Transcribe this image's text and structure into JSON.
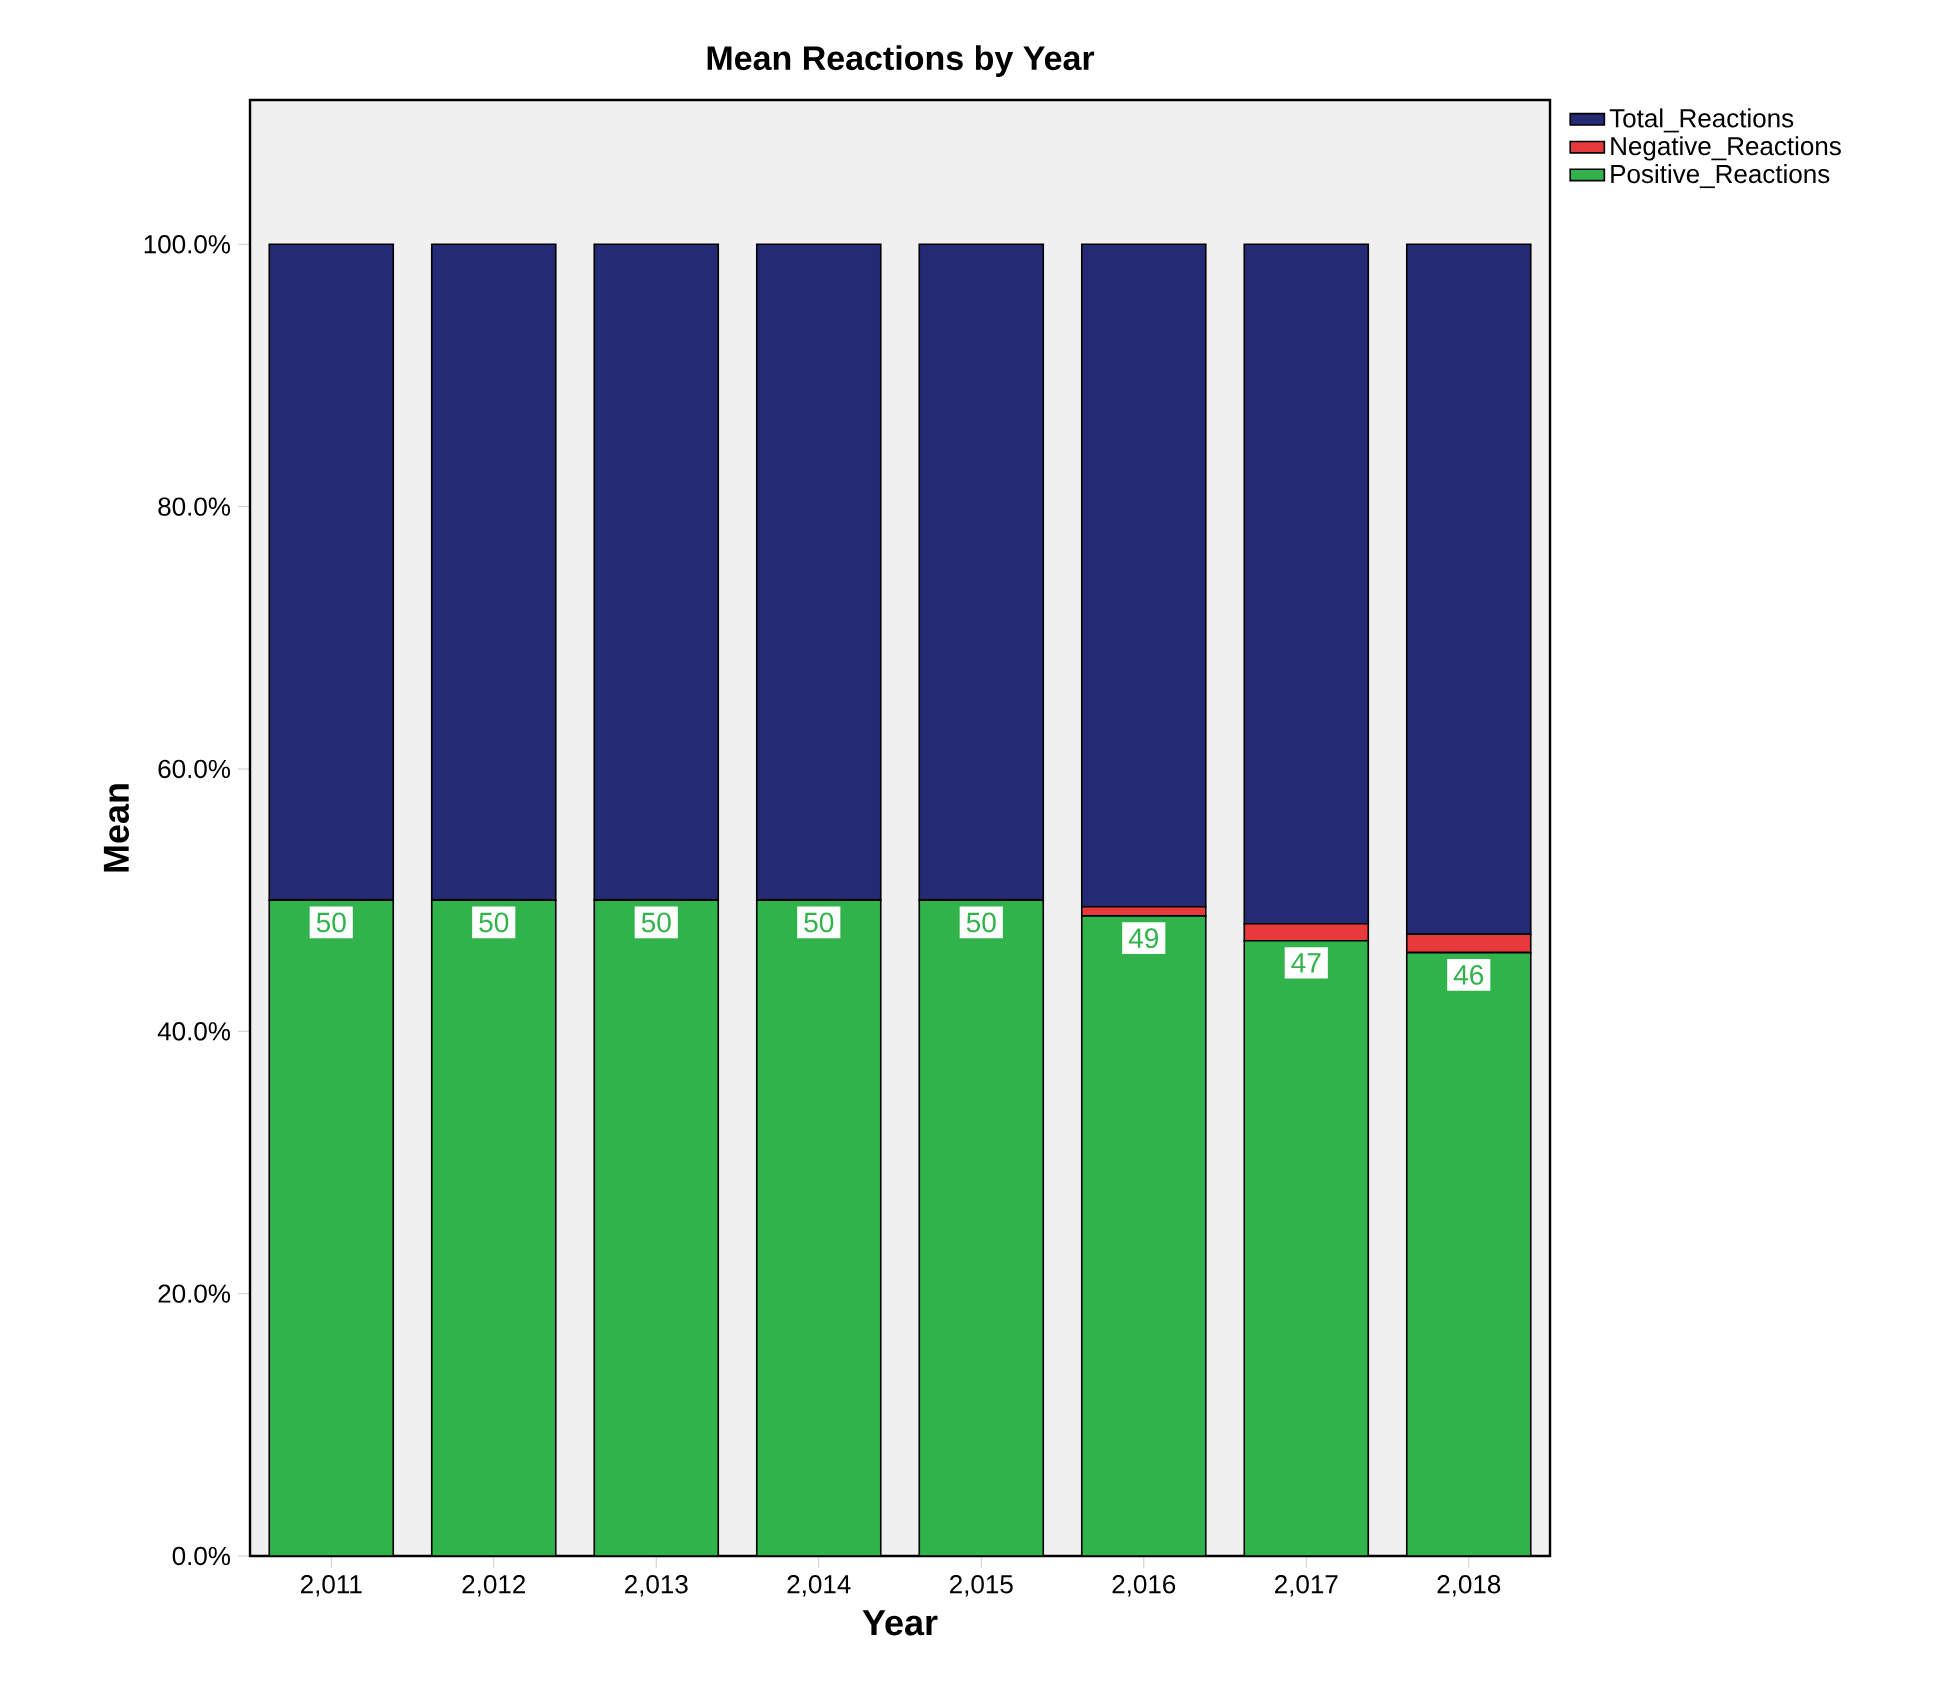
{
  "chart_data": {
    "type": "bar",
    "stacked": true,
    "title": "Mean Reactions by Year",
    "xlabel": "Year",
    "ylabel": "Mean",
    "categories": [
      "2,011",
      "2,012",
      "2,013",
      "2,014",
      "2,015",
      "2,016",
      "2,017",
      "2,018"
    ],
    "series": [
      {
        "name": "Positive_Reactions",
        "color": "#30b34a",
        "values": [
          50,
          50,
          50,
          50,
          50,
          48.8,
          46.9,
          46.0
        ],
        "value_labels": [
          "50",
          "50",
          "50",
          "50",
          "50",
          "49",
          "47",
          "46"
        ]
      },
      {
        "name": "Negative_Reactions",
        "color": "#e83a3a",
        "values": [
          0,
          0,
          0,
          0,
          0,
          0.7,
          1.3,
          1.4
        ]
      },
      {
        "name": "Total_Reactions",
        "color": "#252a75",
        "values": [
          50,
          50,
          50,
          50,
          50,
          50.5,
          51.8,
          52.6
        ]
      }
    ],
    "ylim": [
      0,
      111
    ],
    "yticks": [
      {
        "value": 0,
        "label": "0.0%"
      },
      {
        "value": 20,
        "label": "20.0%"
      },
      {
        "value": 40,
        "label": "40.0%"
      },
      {
        "value": 60,
        "label": "60.0%"
      },
      {
        "value": 80,
        "label": "80.0%"
      },
      {
        "value": 100,
        "label": "100.0%"
      }
    ],
    "legend": "top right",
    "grid": false
  }
}
